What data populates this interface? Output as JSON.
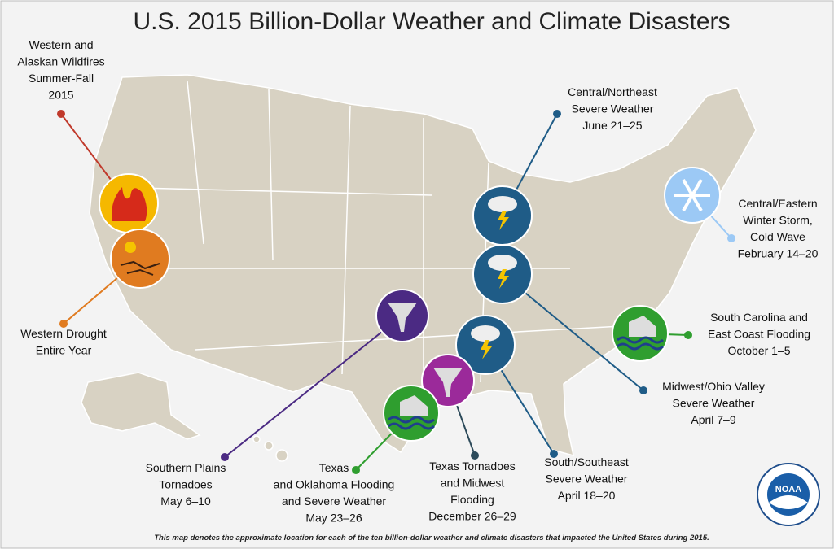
{
  "title": "U.S. 2015 Billion-Dollar Weather and Climate Disasters",
  "events": [
    {
      "label": [
        "Western and",
        "Alaskan Wildfires",
        "Summer-Fall",
        "2015"
      ]
    },
    {
      "label": [
        "Western Drought",
        "Entire Year"
      ]
    },
    {
      "label": [
        "Central/Northeast",
        "Severe Weather",
        "June 21–25"
      ]
    },
    {
      "label": [
        "Central/Eastern",
        "Winter Storm,",
        "Cold Wave",
        "February 14–20"
      ]
    },
    {
      "label": [
        "South Carolina and",
        "East Coast Flooding",
        "October 1–5"
      ]
    },
    {
      "label": [
        "Midwest/Ohio Valley",
        "Severe Weather",
        "April 7–9"
      ]
    },
    {
      "label": [
        "South/Southeast",
        "Severe Weather",
        "April 18–20"
      ]
    },
    {
      "label": [
        "Texas Tornadoes",
        "and Midwest",
        "Flooding",
        "December 26–29"
      ]
    },
    {
      "label": [
        "Texas",
        "and Oklahoma Flooding",
        "and Severe Weather",
        "May 23–26"
      ]
    },
    {
      "label": [
        "Southern Plains",
        "Tornadoes",
        "May 6–10"
      ]
    }
  ],
  "footnote": "This map denotes the approximate location for each of the ten billion-dollar weather and climate disasters that impacted the United States during 2015.",
  "logo": "NOAA"
}
